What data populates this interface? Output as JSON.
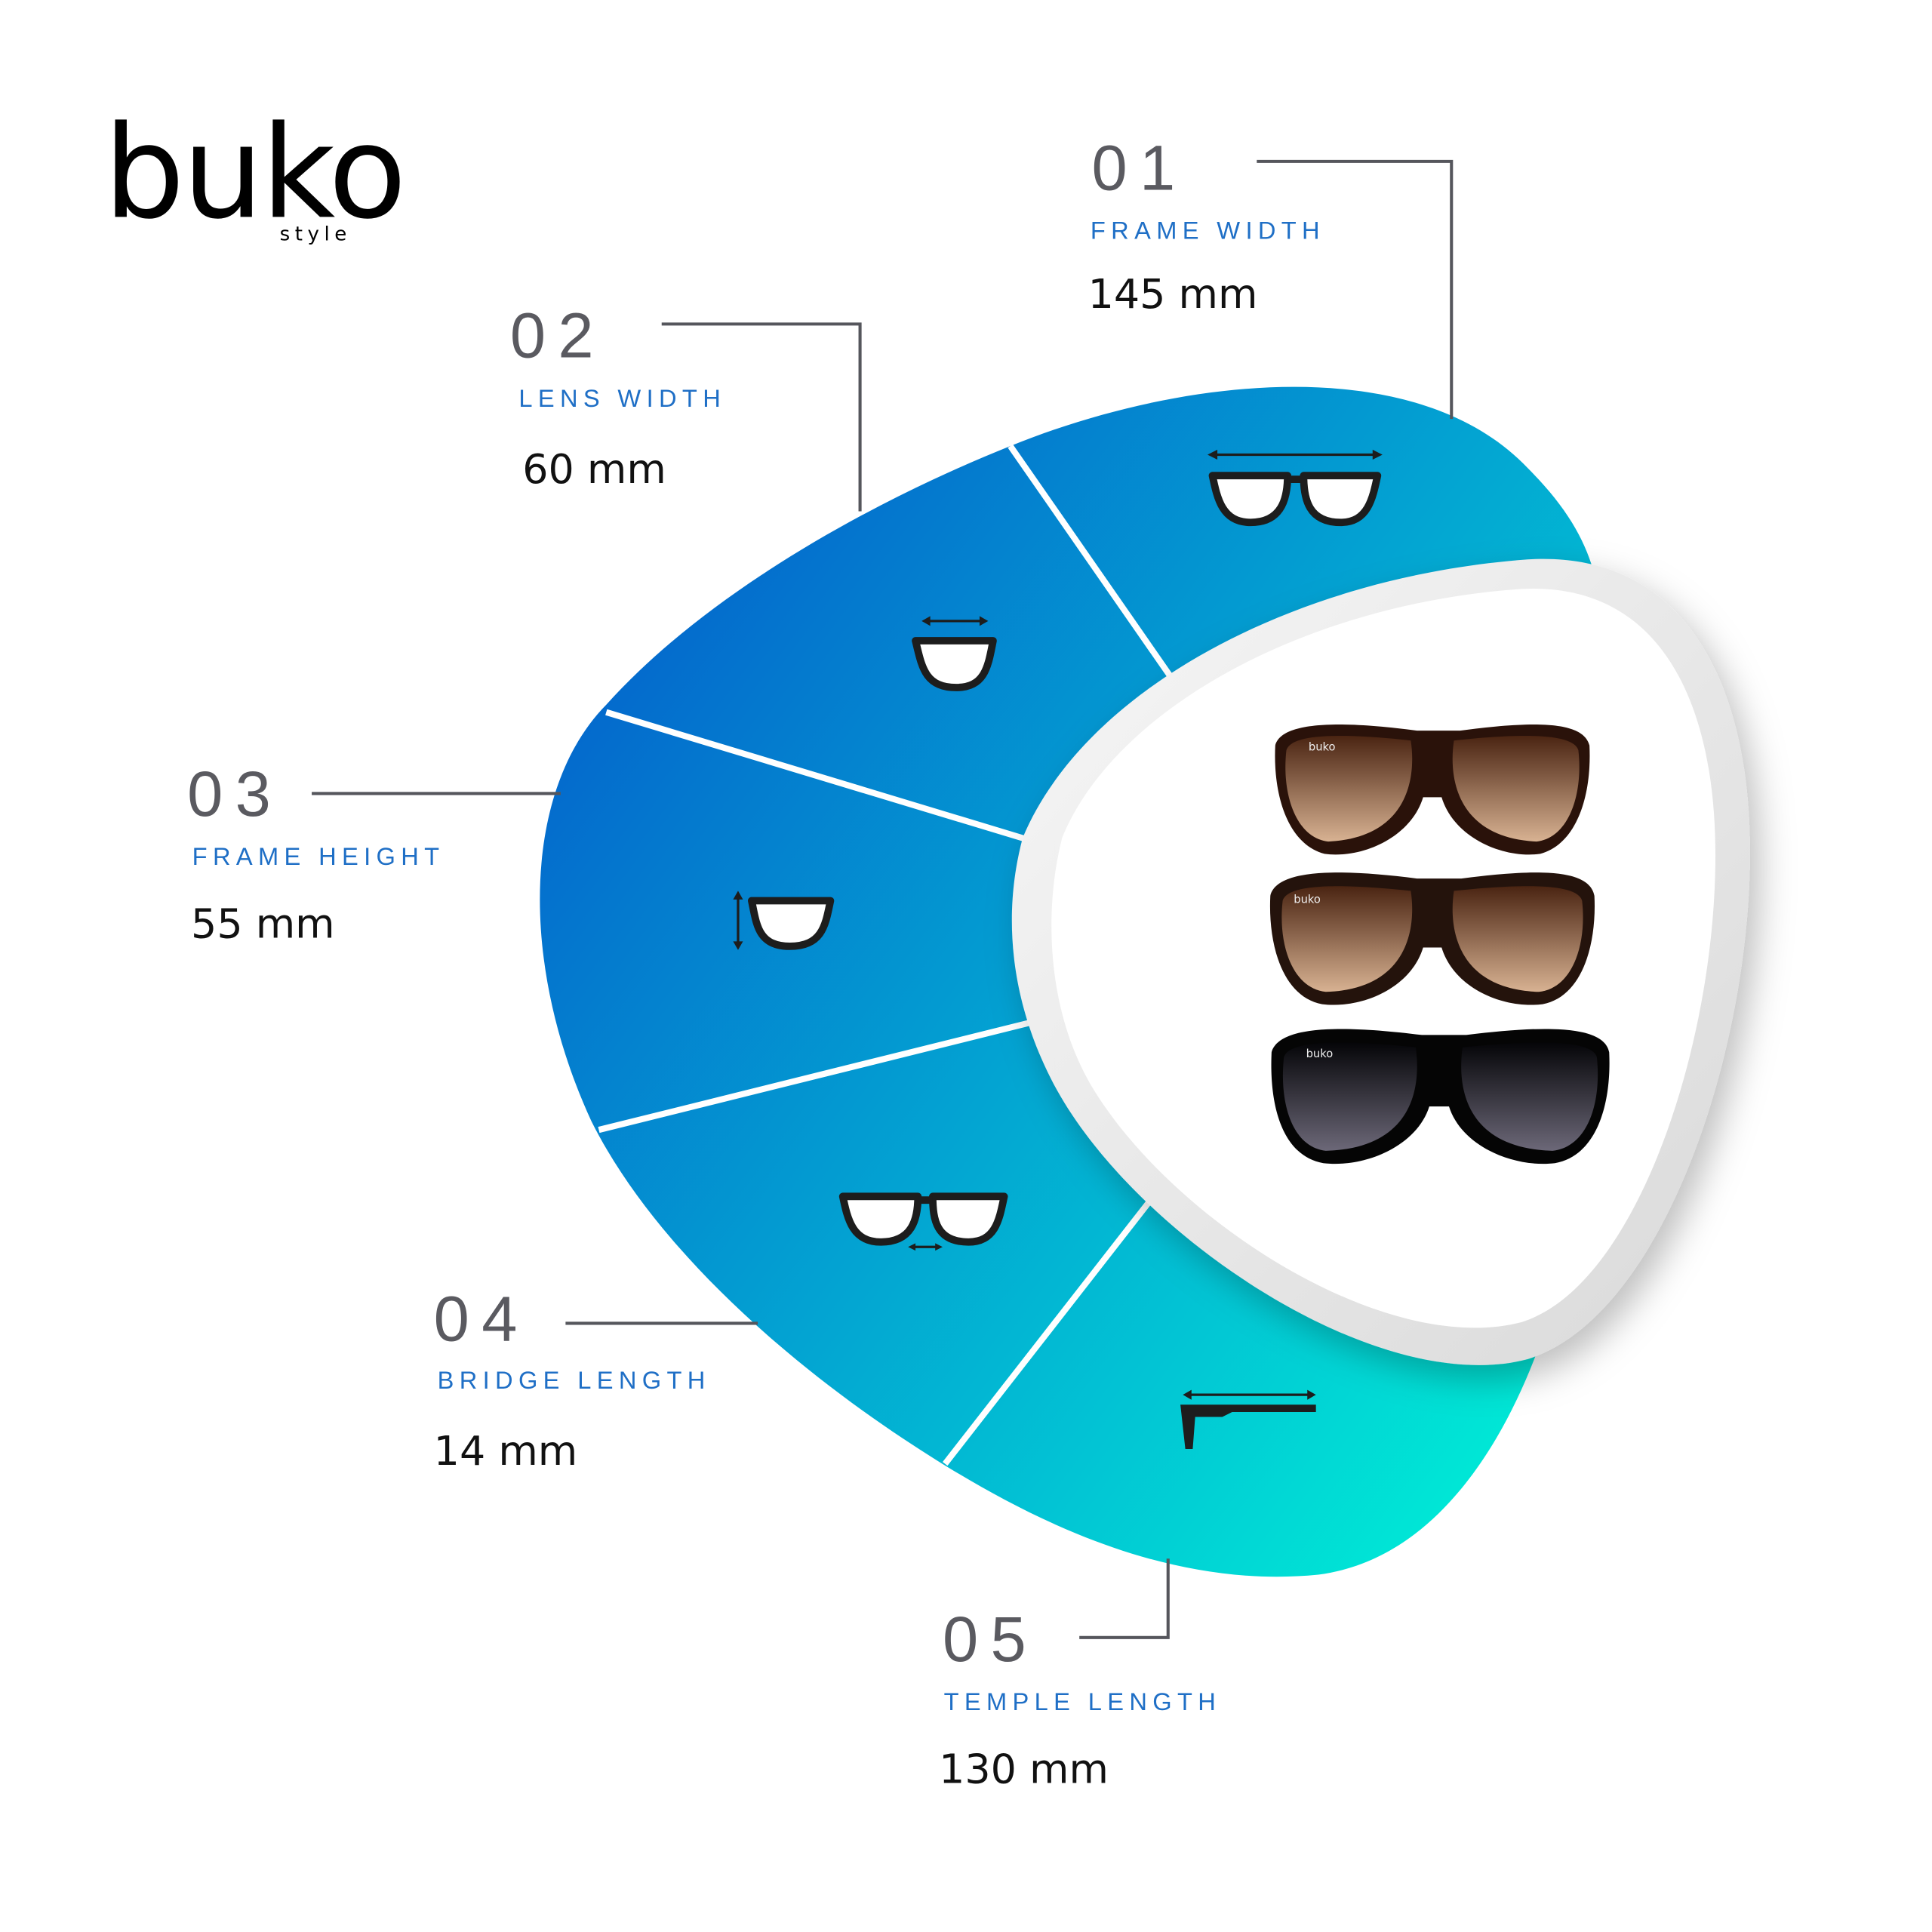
{
  "brand": {
    "name": "buko",
    "tagline": "style",
    "lens_mark": "buko"
  },
  "colors": {
    "gradient_start": "#0466cc",
    "gradient_end": "#00e4d4",
    "label_blue": "#1f6fc6",
    "number_gray": "#5a5a60"
  },
  "measurements": [
    {
      "number": "01",
      "label": "FRAME WIDTH",
      "value": "145 mm",
      "icon": "frame-width-icon"
    },
    {
      "number": "02",
      "label": "LENS WIDTH",
      "value": "60 mm",
      "icon": "lens-width-icon"
    },
    {
      "number": "03",
      "label": "FRAME HEIGHT",
      "value": "55 mm",
      "icon": "frame-height-icon"
    },
    {
      "number": "04",
      "label": "BRIDGE LENGTH",
      "value": "14 mm",
      "icon": "bridge-length-icon"
    },
    {
      "number": "05",
      "label": "TEMPLE LENGTH",
      "value": "130 mm",
      "icon": "temple-length-icon"
    }
  ],
  "product": {
    "variants": [
      "brown",
      "tortoise",
      "black"
    ]
  }
}
